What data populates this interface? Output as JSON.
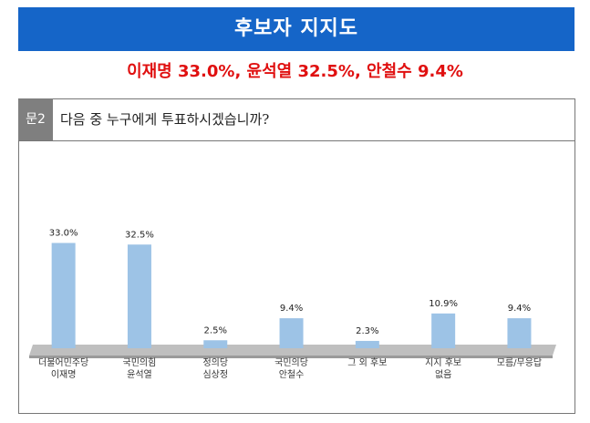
{
  "chart_data": {
    "type": "bar",
    "header": "후보자 지지도",
    "subtitle": "이재명 33.0%, 윤석열 32.5%, 안철수 9.4%",
    "question_label": "문2",
    "title": "다음 중 누구에게 투표하시겠습니까?",
    "categories": [
      "더불어민주당\n이재명",
      "국민의힘\n윤석열",
      "정의당\n심상정",
      "국민의당\n안철수",
      "그 외 후보",
      "지지 후보\n없음",
      "모름/무응답"
    ],
    "values": [
      33.0,
      32.5,
      2.5,
      9.4,
      2.3,
      10.9,
      9.4
    ],
    "value_labels": [
      "33.0%",
      "32.5%",
      "2.5%",
      "9.4%",
      "2.3%",
      "10.9%",
      "9.4%"
    ],
    "color": "#9dc3e6"
  }
}
